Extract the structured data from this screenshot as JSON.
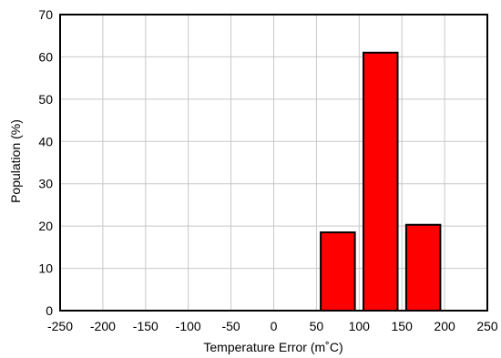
{
  "chart_data": {
    "type": "bar",
    "x_label": "Temperature Error (m˚C)",
    "y_label": "Population (%)",
    "xlim": [
      -250,
      250
    ],
    "ylim": [
      0,
      70
    ],
    "x_ticks": [
      -250,
      -200,
      -150,
      -100,
      -50,
      0,
      50,
      100,
      150,
      200,
      250
    ],
    "y_ticks": [
      0,
      10,
      20,
      30,
      40,
      50,
      60,
      70
    ],
    "grid": true,
    "bar_color": "#ff0000",
    "bin_width": 40,
    "bars": [
      {
        "center": 75,
        "value": 18.5
      },
      {
        "center": 125,
        "value": 61
      },
      {
        "center": 175,
        "value": 20.3
      }
    ]
  }
}
